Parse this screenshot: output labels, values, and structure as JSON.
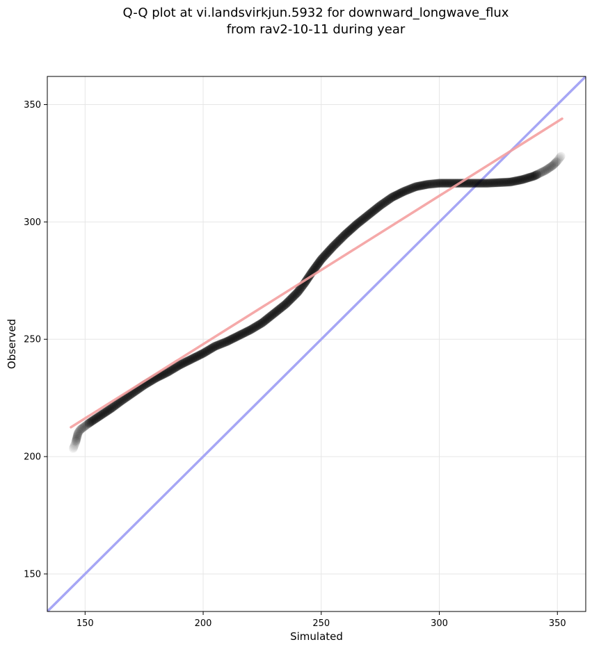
{
  "chart_data": {
    "type": "scatter",
    "title_lines": [
      "Q-Q plot at vi.landsvirkjun.5932 for downward_longwave_flux",
      "from rav2-10-11 during year"
    ],
    "xlabel": "Simulated",
    "ylabel": "Observed",
    "xlim": [
      134,
      362
    ],
    "ylim": [
      134,
      362
    ],
    "xticks": [
      150,
      200,
      250,
      300,
      350
    ],
    "yticks": [
      150,
      200,
      250,
      300,
      350
    ],
    "grid": true,
    "quantile_curve": [
      [
        145,
        203.5
      ],
      [
        146,
        206
      ],
      [
        146.5,
        208
      ],
      [
        147,
        210
      ],
      [
        148,
        211.5
      ],
      [
        150,
        213
      ],
      [
        152,
        214.5
      ],
      [
        155,
        216.5
      ],
      [
        158,
        218.5
      ],
      [
        161,
        220.5
      ],
      [
        165,
        223.5
      ],
      [
        170,
        227
      ],
      [
        175,
        230.5
      ],
      [
        180,
        233.5
      ],
      [
        185,
        236
      ],
      [
        190,
        239
      ],
      [
        195,
        241.5
      ],
      [
        200,
        244
      ],
      [
        205,
        247
      ],
      [
        210,
        249
      ],
      [
        215,
        251.5
      ],
      [
        220,
        254
      ],
      [
        225,
        257
      ],
      [
        230,
        261
      ],
      [
        235,
        265
      ],
      [
        240,
        270
      ],
      [
        243,
        274
      ],
      [
        246,
        278.5
      ],
      [
        250,
        284
      ],
      [
        255,
        289.5
      ],
      [
        260,
        294.5
      ],
      [
        265,
        299
      ],
      [
        270,
        303
      ],
      [
        275,
        307
      ],
      [
        280,
        310.5
      ],
      [
        285,
        313
      ],
      [
        290,
        315
      ],
      [
        295,
        316
      ],
      [
        300,
        316.5
      ],
      [
        310,
        316.5
      ],
      [
        320,
        316.5
      ],
      [
        330,
        317
      ],
      [
        335,
        318
      ],
      [
        340,
        319.5
      ],
      [
        345,
        322
      ],
      [
        348,
        324
      ],
      [
        350,
        326
      ],
      [
        351.5,
        328
      ]
    ],
    "fit_line": [
      [
        144,
        212.5
      ],
      [
        352,
        344
      ]
    ],
    "identity_line": [
      [
        134,
        134
      ],
      [
        362,
        362
      ]
    ],
    "colors": {
      "points": "#000000",
      "fit_line": "#f4a0a0",
      "identity_line": "#a6a6f5",
      "grid": "#e6e6e6"
    }
  }
}
